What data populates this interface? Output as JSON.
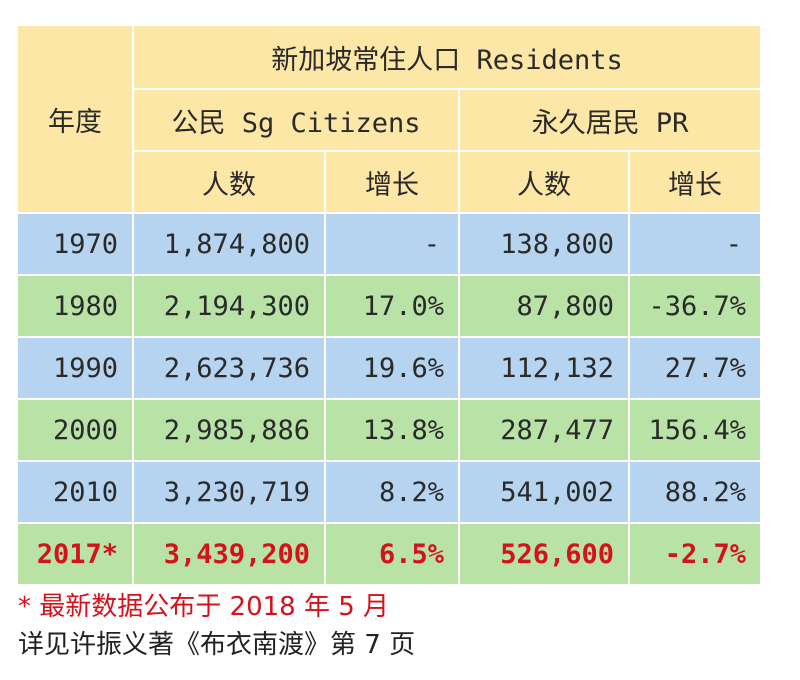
{
  "header": {
    "year_label": "年度",
    "group_title": "新加坡常住人口 Residents",
    "citizens_label": "公民 Sg Citizens",
    "pr_label": "永久居民 PR",
    "count_label": "人数",
    "growth_label": "增长"
  },
  "rows": [
    {
      "year": "1970",
      "citizens": "1,874,800",
      "cit_growth": "-",
      "pr": "138,800",
      "pr_growth": "-"
    },
    {
      "year": "1980",
      "citizens": "2,194,300",
      "cit_growth": "17.0%",
      "pr": "87,800",
      "pr_growth": "-36.7%"
    },
    {
      "year": "1990",
      "citizens": "2,623,736",
      "cit_growth": "19.6%",
      "pr": "112,132",
      "pr_growth": "27.7%"
    },
    {
      "year": "2000",
      "citizens": "2,985,886",
      "cit_growth": "13.8%",
      "pr": "287,477",
      "pr_growth": "156.4%"
    },
    {
      "year": "2010",
      "citizens": "3,230,719",
      "cit_growth": "8.2%",
      "pr": "541,002",
      "pr_growth": "88.2%"
    },
    {
      "year": "2017*",
      "citizens": "3,439,200",
      "cit_growth": "6.5%",
      "pr": "526,600",
      "pr_growth": "-2.7%"
    }
  ],
  "notes": {
    "latest": "* 最新数据公布于 2018 年 5 月",
    "source": "详见许振义著《布衣南渡》第 7 页"
  },
  "colors": {
    "header_bg": "#fde7a6",
    "row_blue": "#b6d4f0",
    "row_green": "#b9e2a7",
    "highlight_red": "#d3121b"
  }
}
